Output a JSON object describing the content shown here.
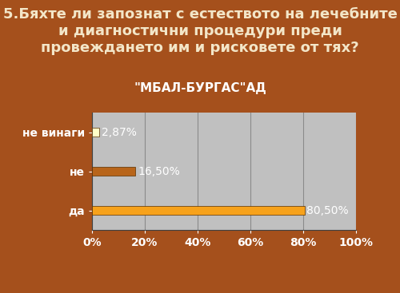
{
  "chart_data": {
    "type": "bar",
    "orientation": "horizontal",
    "title": "5.Бяхте ли запознат с естеството на лечебните и диагностични процедури преди провеждането им и рисковете от тях?",
    "subtitle": "\"МБАЛ-БУРГАС\"АД",
    "categories": [
      "не винаги",
      "не",
      "да"
    ],
    "values": [
      2.87,
      16.5,
      80.5
    ],
    "value_labels": [
      "2,87%",
      "16,50%",
      "80,50%"
    ],
    "colors": [
      "#ffffc8",
      "#b8651a",
      "#f7a21b"
    ],
    "xlim": [
      0,
      100
    ],
    "xticks": [
      {
        "value": 0,
        "label": "0%"
      },
      {
        "value": 20,
        "label": "20%"
      },
      {
        "value": 40,
        "label": "40%"
      },
      {
        "value": 60,
        "label": "60%"
      },
      {
        "value": 80,
        "label": "80%"
      },
      {
        "value": 100,
        "label": "100%"
      }
    ],
    "grid": true,
    "data_labels": true
  }
}
